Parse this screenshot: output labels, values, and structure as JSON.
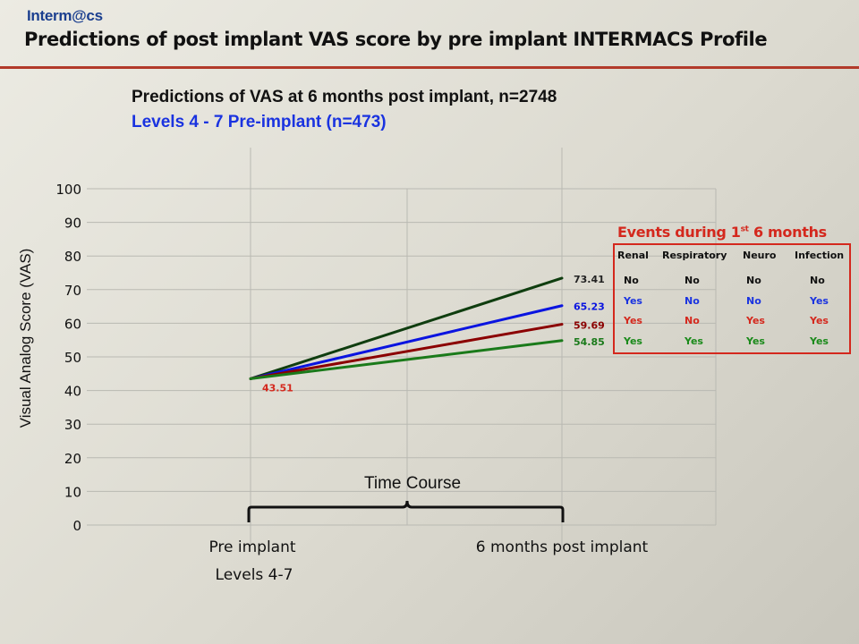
{
  "header": {
    "logo": "Interm@cs",
    "title": "Predictions of post implant VAS score by pre implant INTERMACS Profile"
  },
  "colors": {
    "accent_rule": "#b23a2a",
    "title_blue": "#1a33e0",
    "events_red": "#d4281d"
  },
  "chart_data": {
    "type": "line",
    "title": "Predictions of VAS at 6 months post implant, n=2748",
    "subtitle": "Levels 4 - 7 Pre-implant  (n=473)",
    "ylabel": "Visual Analog Score (VAS)",
    "xlabel": "",
    "ylim": [
      0,
      100
    ],
    "yticks": [
      0,
      10,
      20,
      30,
      40,
      50,
      60,
      70,
      80,
      90,
      100
    ],
    "categories": [
      "Pre implant",
      "6 months post implant"
    ],
    "category_sublabel": "Levels 4-7",
    "grid": true,
    "start_label": "43.51",
    "bracket_label": "Time Course",
    "series": [
      {
        "values": [
          43.51,
          73.41
        ],
        "end_label": "73.41",
        "color": "#0f3d0f"
      },
      {
        "values": [
          43.51,
          65.23
        ],
        "end_label": "65.23",
        "color": "#0a14e0"
      },
      {
        "values": [
          43.51,
          59.69
        ],
        "end_label": "59.69",
        "color": "#8b0000"
      },
      {
        "values": [
          43.51,
          54.85
        ],
        "end_label": "54.85",
        "color": "#1a7a1a"
      }
    ]
  },
  "events": {
    "title": "Events during 1",
    "title_sup": "st",
    "title_tail": " 6 months",
    "columns": [
      "Renal",
      "Respiratory",
      "Neuro",
      "Infection"
    ],
    "rows": [
      {
        "values": [
          "No",
          "No",
          "No",
          "No"
        ],
        "color": "#111111"
      },
      {
        "values": [
          "Yes",
          "No",
          "No",
          "Yes"
        ],
        "color": "#1a33e0"
      },
      {
        "values": [
          "Yes",
          "No",
          "Yes",
          "Yes"
        ],
        "color": "#d4281d"
      },
      {
        "values": [
          "Yes",
          "Yes",
          "Yes",
          "Yes"
        ],
        "color": "#1a8a1a"
      }
    ]
  }
}
